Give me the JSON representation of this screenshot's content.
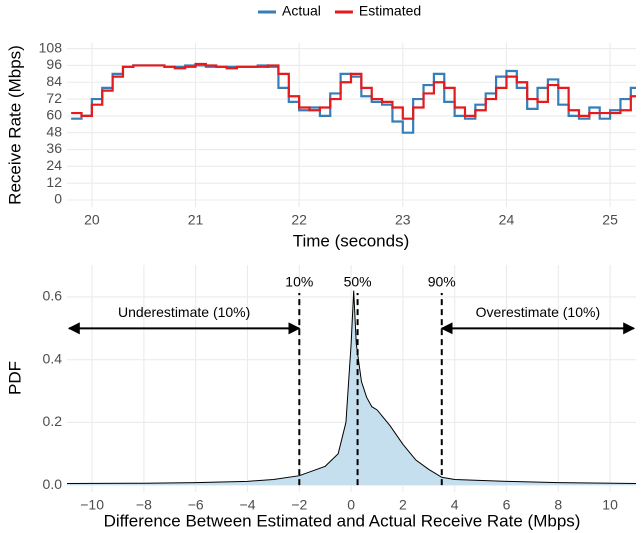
{
  "chart_data": [
    {
      "type": "line",
      "step": true,
      "x_label": "Time (seconds)",
      "y_label": "Receive Rate (Mbps)",
      "legend": "top",
      "grid": true,
      "xlim": [
        19.76,
        25.25
      ],
      "ylim": [
        -5,
        112
      ],
      "xticks": [
        20,
        21,
        22,
        23,
        24,
        25
      ],
      "yticks": [
        0,
        12,
        24,
        36,
        48,
        60,
        72,
        84,
        96,
        108
      ],
      "x": [
        19.8,
        19.9,
        20.0,
        20.1,
        20.2,
        20.3,
        20.4,
        20.5,
        20.6,
        20.7,
        20.8,
        20.9,
        21.0,
        21.1,
        21.2,
        21.3,
        21.4,
        21.5,
        21.6,
        21.7,
        21.8,
        21.9,
        22.0,
        22.1,
        22.2,
        22.3,
        22.4,
        22.5,
        22.6,
        22.7,
        22.8,
        22.9,
        23.0,
        23.1,
        23.2,
        23.3,
        23.4,
        23.5,
        23.6,
        23.7,
        23.8,
        23.9,
        24.0,
        24.1,
        24.2,
        24.3,
        24.4,
        24.5,
        24.6,
        24.7,
        24.8,
        24.9,
        25.0,
        25.1,
        25.2
      ],
      "series": [
        {
          "name": "Actual",
          "color": "#377eb8",
          "values": [
            58,
            60,
            72,
            80,
            90,
            95,
            96,
            96,
            96,
            95,
            95,
            96,
            96,
            95,
            95,
            95,
            95,
            95,
            96,
            95,
            80,
            70,
            64,
            66,
            60,
            76,
            90,
            88,
            74,
            70,
            68,
            56,
            48,
            72,
            82,
            90,
            70,
            60,
            58,
            68,
            76,
            88,
            92,
            80,
            65,
            80,
            86,
            68,
            60,
            58,
            66,
            58,
            64,
            72,
            80
          ]
        },
        {
          "name": "Estimated",
          "color": "#e41a1c",
          "values": [
            62,
            60,
            68,
            78,
            88,
            95,
            96,
            96,
            96,
            95,
            94,
            95,
            97,
            96,
            95,
            94,
            95,
            95,
            95,
            96,
            90,
            74,
            66,
            64,
            66,
            72,
            84,
            90,
            80,
            72,
            70,
            66,
            58,
            66,
            76,
            84,
            80,
            66,
            60,
            64,
            72,
            80,
            88,
            84,
            72,
            70,
            82,
            80,
            64,
            60,
            62,
            62,
            62,
            64,
            74
          ]
        }
      ]
    },
    {
      "type": "area",
      "x_label": "Difference Between Estimated and Actual Receive Rate (Mbps)",
      "y_label": "PDF",
      "grid": true,
      "color": "#c6dfee",
      "line_color": "#000000",
      "xlim": [
        -10.97,
        11.0
      ],
      "ylim": [
        -0.022,
        0.702
      ],
      "xticks": [
        {
          "value": -10,
          "label": "−10"
        },
        {
          "value": -8,
          "label": "−8"
        },
        {
          "value": -6,
          "label": "−6"
        },
        {
          "value": -4,
          "label": "−4"
        },
        {
          "value": -2,
          "label": "−2"
        },
        0,
        2,
        4,
        6,
        8,
        10
      ],
      "yticks": [
        {
          "value": 0,
          "label": "0.0"
        },
        0.2,
        0.4,
        0.6
      ],
      "x": [
        -11,
        -8,
        -6,
        -4,
        -3,
        -2,
        -1,
        -0.5,
        -0.2,
        0,
        0.1,
        0.2,
        0.4,
        0.6,
        0.8,
        1.0,
        1.5,
        2,
        2.5,
        3,
        3.5,
        4,
        6,
        8,
        11
      ],
      "y": [
        0.005,
        0.006,
        0.008,
        0.012,
        0.018,
        0.03,
        0.06,
        0.1,
        0.2,
        0.45,
        0.62,
        0.45,
        0.33,
        0.28,
        0.25,
        0.24,
        0.19,
        0.13,
        0.08,
        0.05,
        0.025,
        0.018,
        0.012,
        0.008,
        0.005
      ],
      "vlines": [
        {
          "x": -2,
          "label": "10%"
        },
        {
          "x": 0.25,
          "label": "50%"
        },
        {
          "x": 3.5,
          "label": "90%"
        }
      ],
      "annotations": [
        {
          "text": "Underestimate (10%)",
          "x_start": -2,
          "x_end": -10.97,
          "y": 0.5
        },
        {
          "text": "Overestimate (10%)",
          "x_start": 3.5,
          "x_end": 11.0,
          "y": 0.5
        }
      ]
    }
  ]
}
